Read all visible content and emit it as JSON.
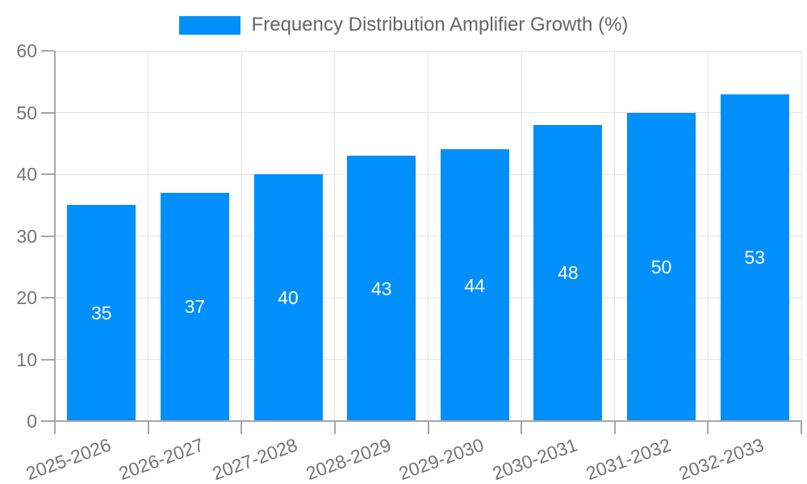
{
  "chart_data": {
    "type": "bar",
    "title": "Frequency Distribution Amplifier Growth (%)",
    "categories": [
      "2025-2026",
      "2026-2027",
      "2027-2028",
      "2028-2029",
      "2029-2030",
      "2030-2031",
      "2031-2032",
      "2032-2033"
    ],
    "series": [
      {
        "name": "Frequency Distribution Amplifier Growth (%)",
        "values": [
          35,
          37,
          40,
          43,
          44,
          48,
          50,
          53
        ]
      }
    ],
    "values": [
      35,
      37,
      40,
      43,
      44,
      48,
      50,
      53
    ],
    "bar_value_labels": [
      "35",
      "37",
      "40",
      "43",
      "44",
      "48",
      "50",
      "53"
    ],
    "xlabel": "",
    "ylabel": "",
    "ylim": [
      0,
      60
    ],
    "y_ticks": [
      0,
      10,
      20,
      30,
      40,
      50,
      60
    ],
    "grid": true,
    "legend_position": "top",
    "colors": {
      "bar": "#008FFB",
      "bar_value_label": "#ffffff",
      "tick_label": "#757575",
      "legend_text": "#666666",
      "grid_line": "#e3e3e3",
      "axis_line": "#a6a6a6"
    }
  }
}
